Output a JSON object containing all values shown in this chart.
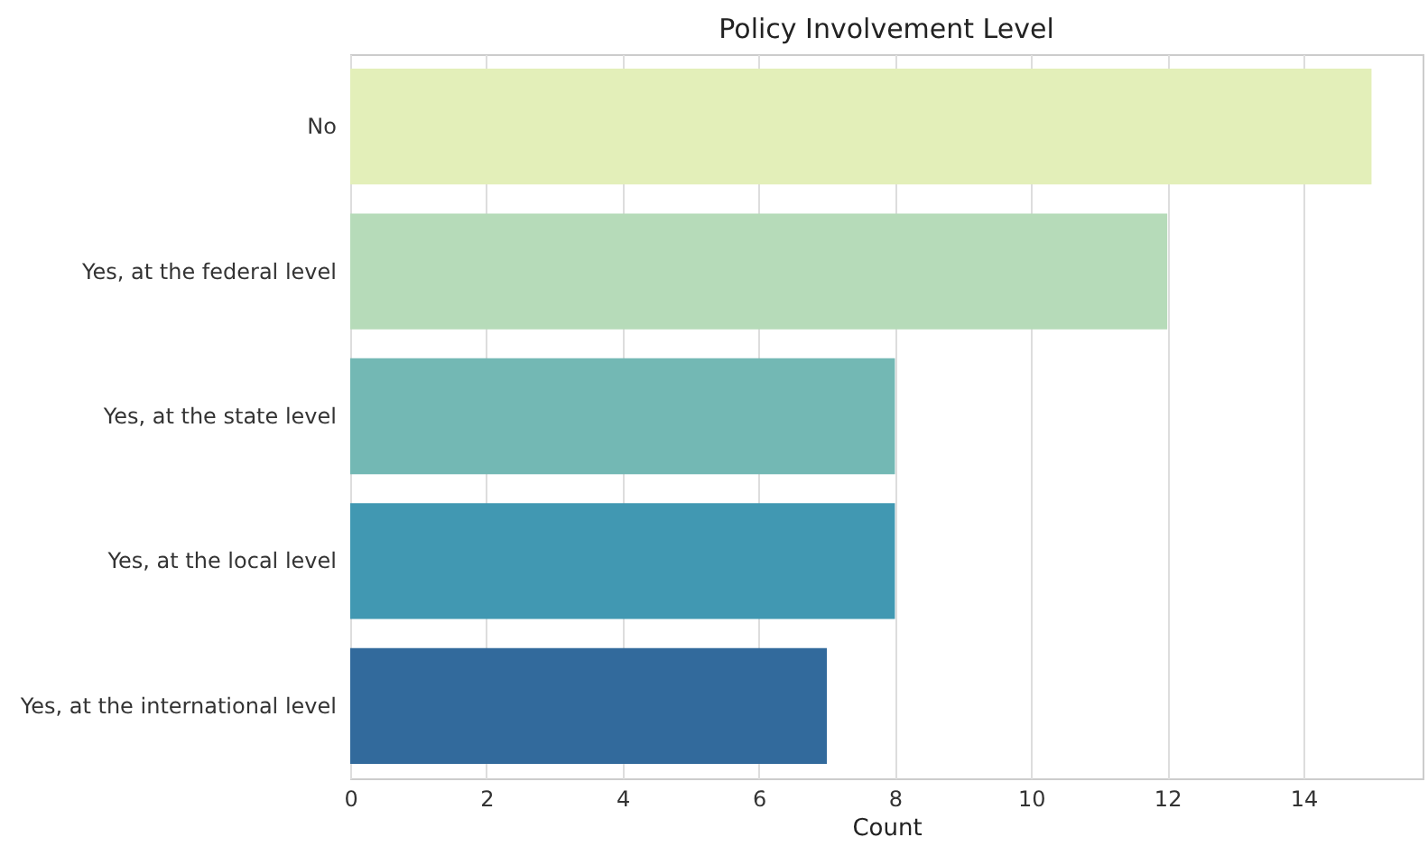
{
  "chart_data": {
    "type": "bar",
    "orientation": "horizontal",
    "title": "Policy Involvement Level",
    "xlabel": "Count",
    "categories": [
      "No",
      "Yes, at the federal level",
      "Yes, at the state level",
      "Yes, at the local level",
      "Yes, at the international level"
    ],
    "values": [
      15,
      12,
      8,
      8,
      7
    ],
    "colors": [
      "#e3efb9",
      "#b6dbb9",
      "#73b8b4",
      "#4198b2",
      "#326a9c"
    ],
    "xlim": [
      0,
      15.75
    ],
    "xticks": [
      0,
      2,
      4,
      6,
      8,
      10,
      12,
      14
    ],
    "grid": "x"
  }
}
